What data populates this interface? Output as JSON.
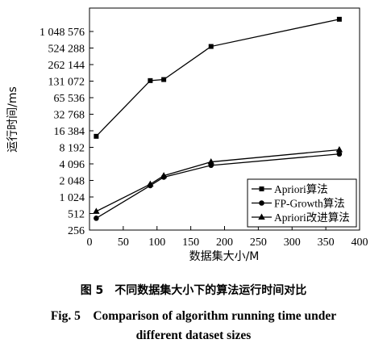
{
  "chart_data": {
    "type": "line",
    "xlabel": "数据集大小/M",
    "ylabel": "运行时间/ms",
    "xlim": [
      0,
      400
    ],
    "ylim": [
      256,
      1048576
    ],
    "yscale": "log2",
    "grid": false,
    "legend_position": "bottom-right",
    "x_ticks": [
      0,
      50,
      100,
      150,
      200,
      250,
      300,
      350,
      400
    ],
    "x_tick_labels": [
      "0",
      "50",
      "100",
      "150",
      "200",
      "250",
      "300",
      "350",
      "400"
    ],
    "y_ticks": [
      256,
      512,
      1024,
      2048,
      4096,
      8192,
      16384,
      32768,
      65536,
      131072,
      262144,
      524288,
      1048576
    ],
    "y_tick_labels": [
      "256",
      "512",
      "1 024",
      "2 048",
      "4 096",
      "8 192",
      "16 384",
      "32 768",
      "65 536",
      "131 072",
      "262 144",
      "524 288",
      "1 048 576"
    ],
    "series": [
      {
        "name": "Apriori算法",
        "marker": "square",
        "x": [
          10,
          90,
          110,
          180,
          370
        ],
        "y": [
          13000,
          134000,
          140000,
          560000,
          1750000
        ]
      },
      {
        "name": "FP-Growth算法",
        "marker": "circle",
        "x": [
          10,
          90,
          110,
          180,
          370
        ],
        "y": [
          420,
          1650,
          2350,
          3850,
          6200
        ]
      },
      {
        "name": "Apriori改进算法",
        "marker": "triangle",
        "x": [
          10,
          90,
          110,
          180,
          370
        ],
        "y": [
          560,
          1750,
          2500,
          4450,
          7400
        ]
      }
    ]
  },
  "caption": {
    "cn": "图 5　不同数据集大小下的算法运行时间对比",
    "en_line1": "Fig. 5　Comparison of algorithm running time under",
    "en_line2": "different dataset sizes"
  }
}
